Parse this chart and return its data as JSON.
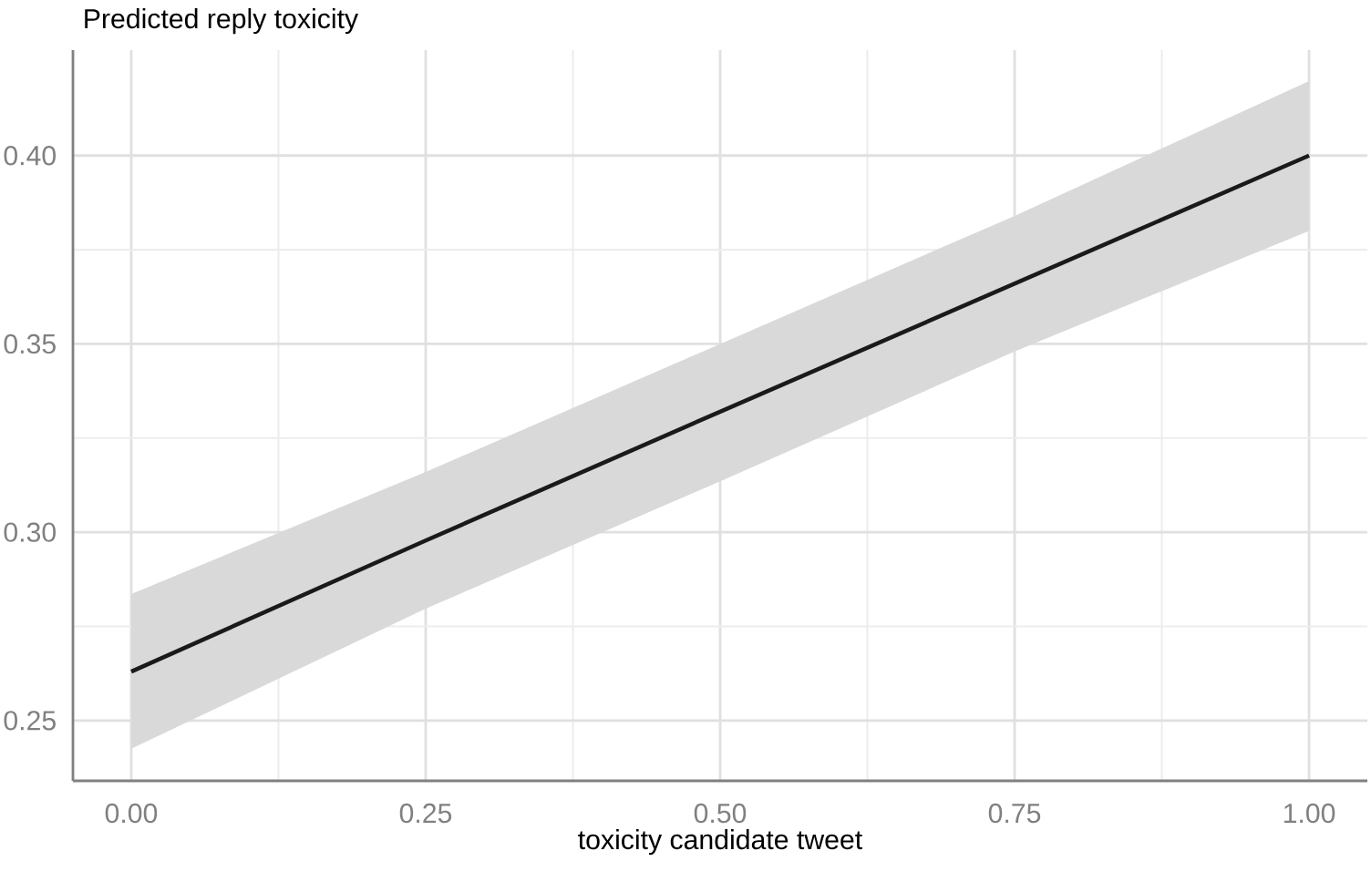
{
  "chart_data": {
    "type": "line",
    "xlabel": "toxicity candidate tweet",
    "ylabel": "Predicted reply toxicity",
    "x": [
      0,
      0.25,
      0.5,
      0.75,
      1
    ],
    "series": [
      {
        "color": "#1a1a1a",
        "values": [
          0.263,
          0.2978,
          0.332,
          0.366,
          0.4
        ],
        "lower": [
          0.2425,
          0.2797,
          0.3135,
          0.348,
          0.38
        ],
        "upper": [
          0.2836,
          0.316,
          0.35,
          0.384,
          0.4198
        ]
      }
    ],
    "xlim": [
      -0.0495,
      1.0495
    ],
    "ylim": [
      0.234,
      0.428
    ],
    "xticks": [
      {
        "value": 0,
        "label": "0.00"
      },
      {
        "value": 0.25,
        "label": "0.25"
      },
      {
        "value": 0.5,
        "label": "0.50"
      },
      {
        "value": 0.75,
        "label": "0.75"
      },
      {
        "value": 1,
        "label": "1.00"
      }
    ],
    "yticks": [
      {
        "value": 0.25,
        "label": "0.25"
      },
      {
        "value": 0.3,
        "label": "0.30"
      },
      {
        "value": 0.35,
        "label": "0.35"
      },
      {
        "value": 0.4,
        "label": "0.40"
      }
    ],
    "grid": true,
    "line_style": "solid",
    "marker": "none"
  }
}
